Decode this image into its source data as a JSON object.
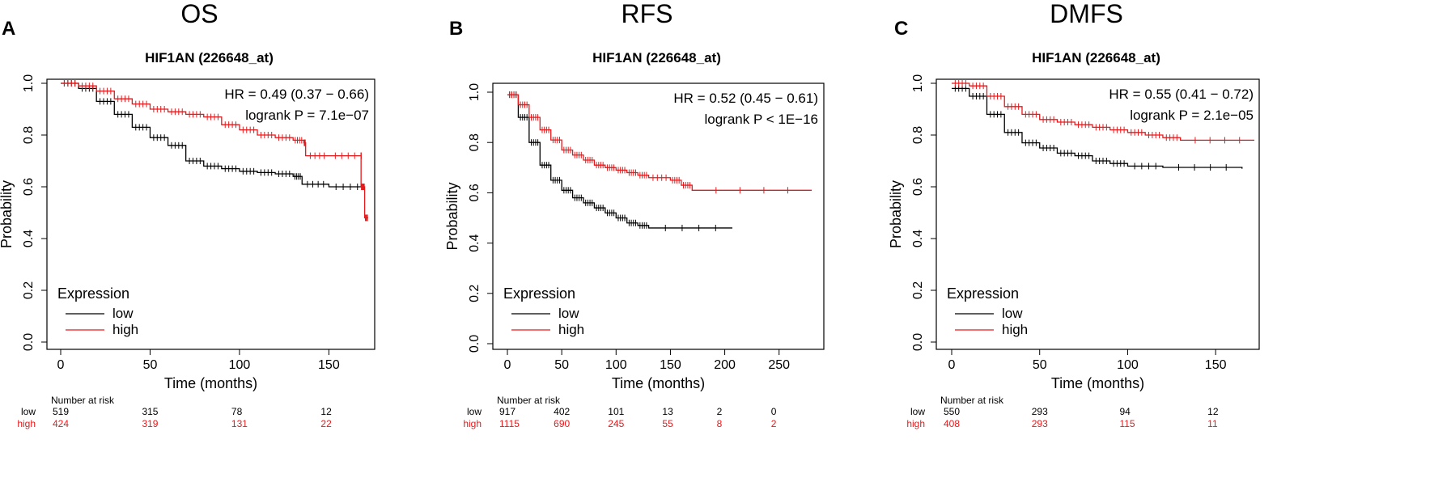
{
  "colors": {
    "low": "#000000",
    "high": "#e41a1c",
    "axis": "#000000"
  },
  "chart_data": [
    {
      "type": "line",
      "panel_letter": "A",
      "header": "OS",
      "title": "HIF1AN (226648_at)",
      "xlabel": "Time (months)",
      "ylabel": "Probability",
      "xlim": [
        0,
        172
      ],
      "ylim": [
        0,
        1
      ],
      "xticks": [
        "0",
        "50",
        "100",
        "150"
      ],
      "yticks": [
        "0.0",
        "0.2",
        "0.4",
        "0.6",
        "0.8",
        "1.0"
      ],
      "hr_text": "HR = 0.49 (0.37 − 0.66)",
      "logrank_text": "logrank P = 7.1e−07",
      "legend_title": "Expression",
      "series": [
        {
          "name": "low",
          "points": [
            [
              0,
              1.0
            ],
            [
              10,
              0.98
            ],
            [
              20,
              0.93
            ],
            [
              30,
              0.88
            ],
            [
              40,
              0.83
            ],
            [
              50,
              0.79
            ],
            [
              60,
              0.76
            ],
            [
              70,
              0.7
            ],
            [
              80,
              0.68
            ],
            [
              90,
              0.67
            ],
            [
              100,
              0.66
            ],
            [
              110,
              0.655
            ],
            [
              120,
              0.65
            ],
            [
              130,
              0.64
            ],
            [
              135,
              0.61
            ],
            [
              150,
              0.6
            ],
            [
              170,
              0.6
            ]
          ]
        },
        {
          "name": "high",
          "points": [
            [
              0,
              1.0
            ],
            [
              10,
              0.99
            ],
            [
              20,
              0.97
            ],
            [
              30,
              0.94
            ],
            [
              40,
              0.92
            ],
            [
              50,
              0.9
            ],
            [
              60,
              0.89
            ],
            [
              70,
              0.88
            ],
            [
              80,
              0.87
            ],
            [
              90,
              0.84
            ],
            [
              100,
              0.82
            ],
            [
              110,
              0.8
            ],
            [
              120,
              0.79
            ],
            [
              130,
              0.78
            ],
            [
              136,
              0.77
            ],
            [
              137,
              0.72
            ],
            [
              150,
              0.72
            ],
            [
              168,
              0.72
            ],
            [
              168,
              0.6
            ],
            [
              169,
              0.6
            ],
            [
              170,
              0.48
            ],
            [
              172,
              0.48
            ]
          ]
        }
      ],
      "risk": {
        "header": "Number at risk",
        "low_label": "low",
        "high_label": "high",
        "times": [
          0,
          50,
          100,
          150
        ],
        "low": [
          "519",
          "315",
          "78",
          "12"
        ],
        "high": [
          "424",
          "319",
          "131",
          "22"
        ]
      }
    },
    {
      "type": "line",
      "panel_letter": "B",
      "header": "RFS",
      "title": "HIF1AN (226648_at)",
      "xlabel": "Time (months)",
      "ylabel": "Probability",
      "xlim": [
        0,
        280
      ],
      "ylim": [
        0,
        1
      ],
      "xticks": [
        "0",
        "50",
        "100",
        "150",
        "200",
        "250"
      ],
      "yticks": [
        "0.0",
        "0.2",
        "0.4",
        "0.6",
        "0.8",
        "1.0"
      ],
      "hr_text": "HR = 0.52 (0.45 − 0.61)",
      "logrank_text": "logrank P < 1E−16",
      "legend_title": "Expression",
      "series": [
        {
          "name": "low",
          "points": [
            [
              0,
              0.99
            ],
            [
              10,
              0.9
            ],
            [
              20,
              0.8
            ],
            [
              30,
              0.71
            ],
            [
              40,
              0.65
            ],
            [
              50,
              0.61
            ],
            [
              60,
              0.58
            ],
            [
              70,
              0.56
            ],
            [
              80,
              0.54
            ],
            [
              90,
              0.52
            ],
            [
              100,
              0.5
            ],
            [
              110,
              0.48
            ],
            [
              120,
              0.47
            ],
            [
              130,
              0.46
            ],
            [
              207,
              0.46
            ]
          ]
        },
        {
          "name": "high",
          "points": [
            [
              0,
              0.99
            ],
            [
              10,
              0.95
            ],
            [
              20,
              0.9
            ],
            [
              30,
              0.85
            ],
            [
              40,
              0.81
            ],
            [
              50,
              0.77
            ],
            [
              60,
              0.75
            ],
            [
              70,
              0.73
            ],
            [
              80,
              0.71
            ],
            [
              90,
              0.7
            ],
            [
              100,
              0.69
            ],
            [
              110,
              0.68
            ],
            [
              120,
              0.67
            ],
            [
              130,
              0.66
            ],
            [
              150,
              0.65
            ],
            [
              160,
              0.63
            ],
            [
              170,
              0.61
            ],
            [
              280,
              0.61
            ]
          ]
        }
      ],
      "risk": {
        "header": "Number at risk",
        "low_label": "low",
        "high_label": "high",
        "times": [
          0,
          50,
          100,
          150,
          200,
          250
        ],
        "low": [
          "917",
          "402",
          "101",
          "13",
          "2",
          "0"
        ],
        "high": [
          "1115",
          "690",
          "245",
          "55",
          "8",
          "2"
        ]
      }
    },
    {
      "type": "line",
      "panel_letter": "C",
      "header": "DMFS",
      "title": "HIF1AN (226648_at)",
      "xlabel": "Time (months)",
      "ylabel": "Probability",
      "xlim": [
        0,
        172
      ],
      "ylim": [
        0,
        1
      ],
      "xticks": [
        "0",
        "50",
        "100",
        "150"
      ],
      "yticks": [
        "0.0",
        "0.2",
        "0.4",
        "0.6",
        "0.8",
        "1.0"
      ],
      "hr_text": "HR = 0.55 (0.41 − 0.72)",
      "logrank_text": "logrank P = 2.1e−05",
      "legend_title": "Expression",
      "series": [
        {
          "name": "low",
          "points": [
            [
              0,
              0.98
            ],
            [
              10,
              0.95
            ],
            [
              20,
              0.88
            ],
            [
              30,
              0.81
            ],
            [
              40,
              0.77
            ],
            [
              50,
              0.75
            ],
            [
              60,
              0.73
            ],
            [
              70,
              0.72
            ],
            [
              80,
              0.7
            ],
            [
              90,
              0.69
            ],
            [
              100,
              0.68
            ],
            [
              120,
              0.675
            ],
            [
              165,
              0.67
            ]
          ]
        },
        {
          "name": "high",
          "points": [
            [
              0,
              1.0
            ],
            [
              10,
              0.99
            ],
            [
              20,
              0.95
            ],
            [
              30,
              0.91
            ],
            [
              40,
              0.88
            ],
            [
              50,
              0.86
            ],
            [
              60,
              0.85
            ],
            [
              70,
              0.84
            ],
            [
              80,
              0.83
            ],
            [
              90,
              0.82
            ],
            [
              100,
              0.81
            ],
            [
              110,
              0.8
            ],
            [
              120,
              0.79
            ],
            [
              130,
              0.78
            ],
            [
              172,
              0.78
            ]
          ]
        }
      ],
      "risk": {
        "header": "Number at risk",
        "low_label": "low",
        "high_label": "high",
        "times": [
          0,
          50,
          100,
          150
        ],
        "low": [
          "550",
          "293",
          "94",
          "12"
        ],
        "high": [
          "408",
          "293",
          "115",
          "11"
        ]
      }
    }
  ]
}
